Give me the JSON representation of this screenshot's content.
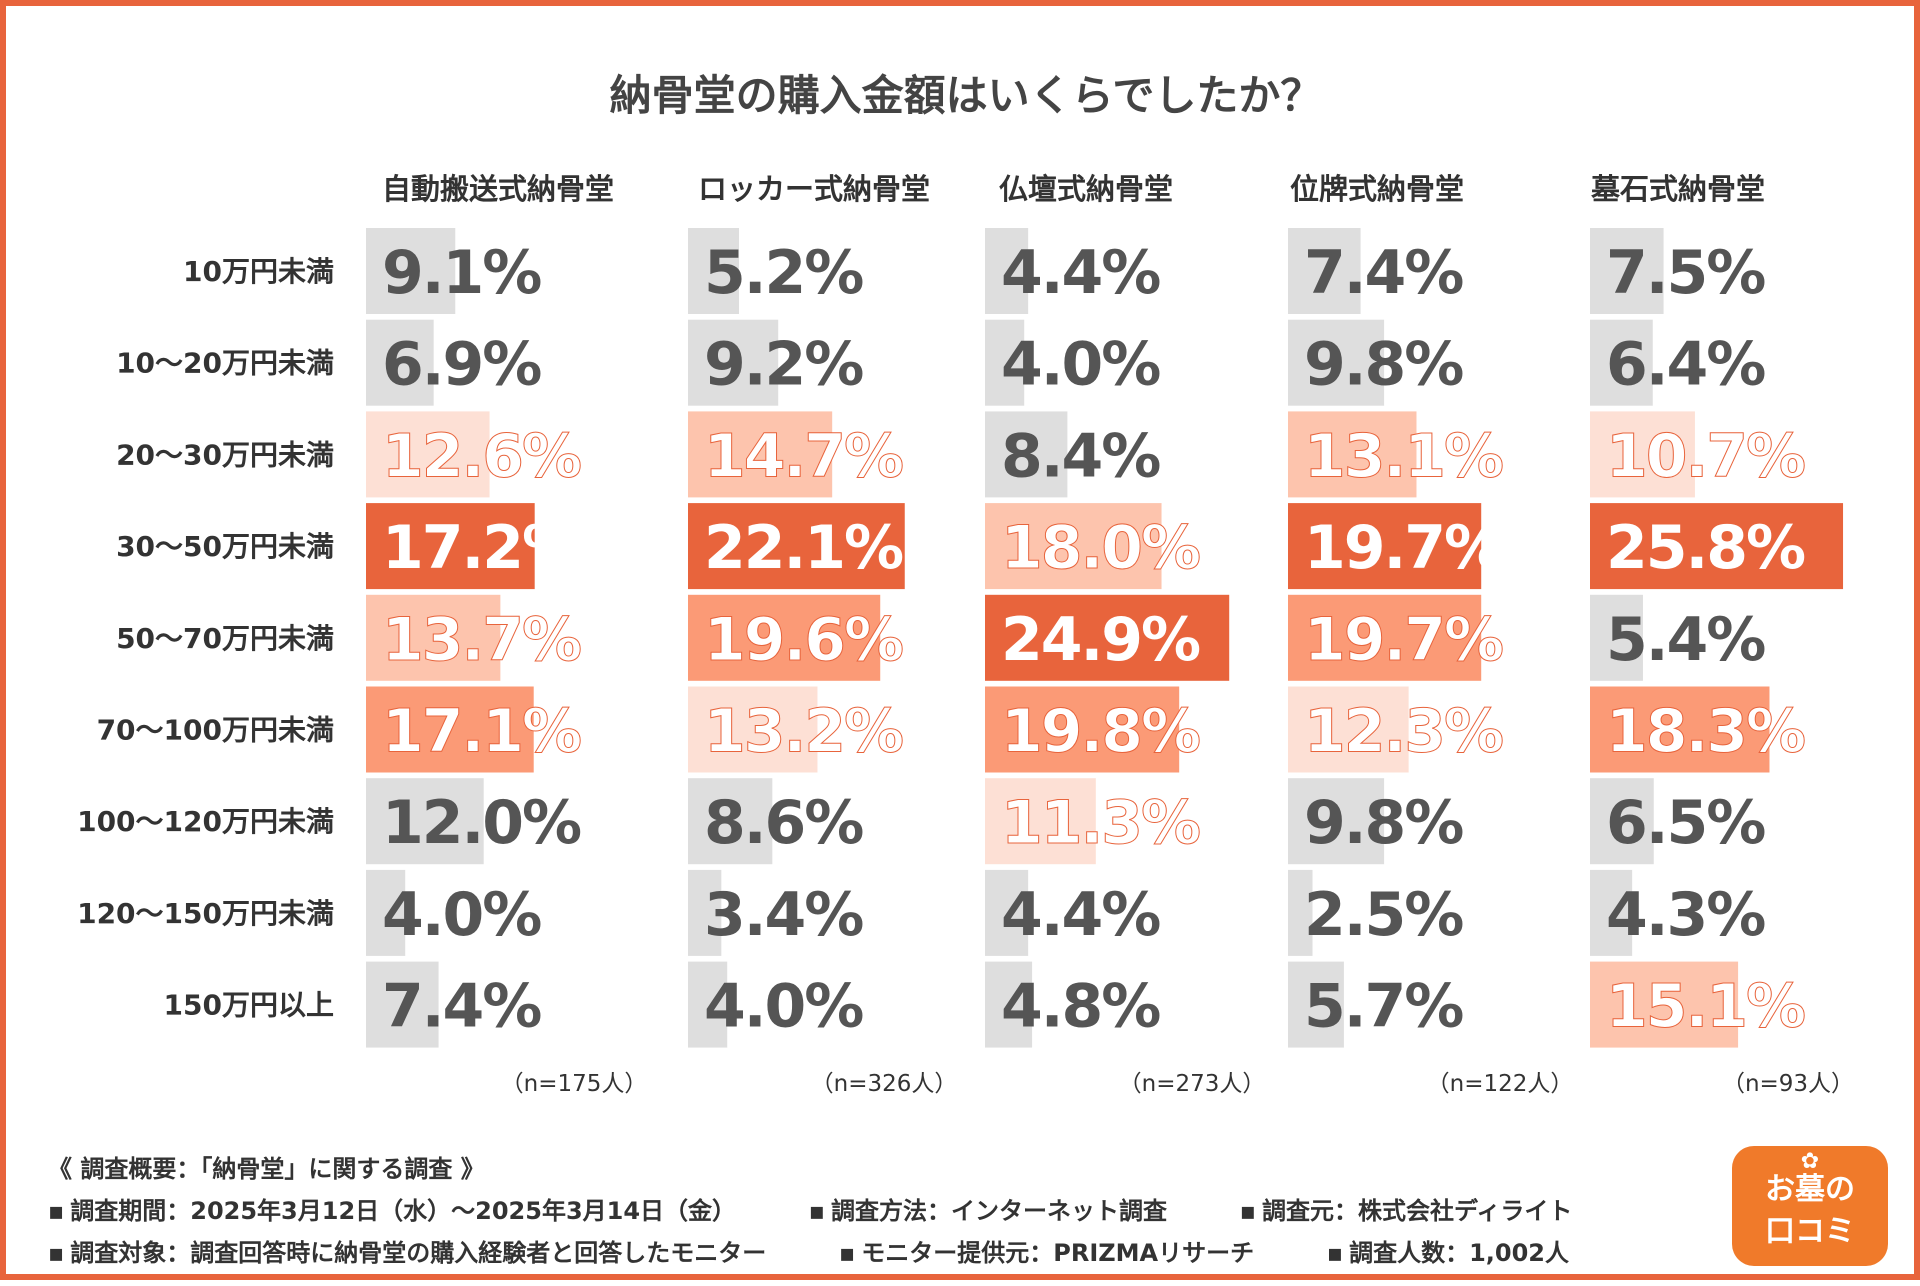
{
  "chart_data": {
    "type": "bar",
    "title": "納骨堂の購入金額はいくらでしたか？",
    "categories": [
      "10万円未満",
      "10〜20万円未満",
      "20〜30万円未満",
      "30〜50万円未満",
      "50〜70万円未満",
      "70〜100万円未満",
      "100〜120万円未満",
      "120〜150万円未満",
      "150万円以上"
    ],
    "unit": "%",
    "series": [
      {
        "name": "自動搬送式納骨堂",
        "n_label": "（n=175人）",
        "values": [
          9.1,
          6.9,
          12.6,
          17.2,
          13.7,
          17.1,
          12.0,
          4.0,
          7.4
        ],
        "labels": [
          "9.1%",
          "6.9%",
          "12.6%",
          "17.2%",
          "13.7%",
          "17.1%",
          "12.0%",
          "4.0%",
          "7.4%"
        ]
      },
      {
        "name": "ロッカー式納骨堂",
        "n_label": "（n=326人）",
        "values": [
          5.2,
          9.2,
          14.7,
          22.1,
          19.6,
          13.2,
          8.6,
          3.4,
          4.0
        ],
        "labels": [
          "5.2%",
          "9.2%",
          "14.7%",
          "22.1%",
          "19.6%",
          "13.2%",
          "8.6%",
          "3.4%",
          "4.0%"
        ]
      },
      {
        "name": "仏壇式納骨堂",
        "n_label": "（n=273人）",
        "values": [
          4.4,
          4.0,
          8.4,
          18.0,
          24.9,
          19.8,
          11.3,
          4.4,
          4.8
        ],
        "labels": [
          "4.4%",
          "4.0%",
          "8.4%",
          "18.0%",
          "24.9%",
          "19.8%",
          "11.3%",
          "4.4%",
          "4.8%"
        ]
      },
      {
        "name": "位牌式納骨堂",
        "n_label": "（n=122人）",
        "values": [
          7.4,
          9.8,
          13.1,
          19.7,
          19.7,
          12.3,
          9.8,
          2.5,
          5.7
        ],
        "labels": [
          "7.4%",
          "9.8%",
          "13.1%",
          "19.7%",
          "19.7%",
          "12.3%",
          "9.8%",
          "2.5%",
          "5.7%"
        ]
      },
      {
        "name": "墓石式納骨堂",
        "n_label": "（n=93人）",
        "values": [
          7.5,
          6.4,
          10.7,
          25.8,
          5.4,
          18.3,
          6.5,
          4.3,
          15.1
        ],
        "labels": [
          "7.5%",
          "6.4%",
          "10.7%",
          "25.8%",
          "5.4%",
          "18.3%",
          "6.5%",
          "4.3%",
          "15.1%"
        ]
      }
    ],
    "highlight_rank_colors": [
      "#e8643c",
      "#fb9a76",
      "#fdc4ad",
      "#fde0d5"
    ],
    "neutral_color": "#dedede",
    "value_max": 26
  },
  "footer": {
    "summary": "《 調査概要：「納骨堂」に関する調査 》",
    "period": "調査期間：2025年3月12日（水）〜2025年3月14日（金）",
    "method": "調査方法：インターネット調査",
    "source": "調査元：株式会社ディライト",
    "target": "調査対象：調査回答時に納骨堂の購入経験者と回答したモニター",
    "provider": "モニター提供元：PRIZMAリサーチ",
    "count": "調査人数：1,002人"
  },
  "logo": {
    "line1": "お墓の",
    "line2": "口コミ"
  }
}
